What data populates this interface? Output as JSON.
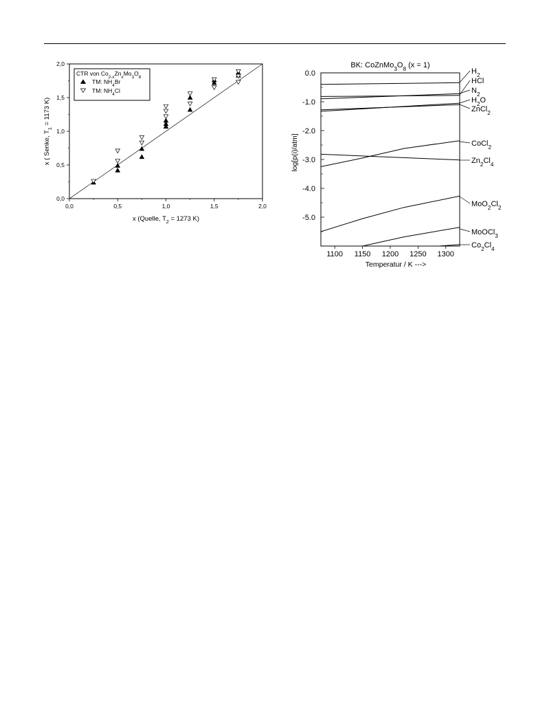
{
  "page": {
    "header_rule": true
  },
  "chart_data": [
    {
      "type": "scatter",
      "xlabel_main": "x (Quelle, T",
      "xlabel_sub": "2",
      "xlabel_tail": " = 1273 K)",
      "ylabel_main": "x ( Senke, T",
      "ylabel_sub": "1",
      "ylabel_tail": " = 1173 K)",
      "xlim": [
        0.0,
        2.0
      ],
      "ylim": [
        0.0,
        2.0
      ],
      "xticks": [
        "0,0",
        "0,5",
        "1,0",
        "1,5",
        "2,0"
      ],
      "yticks": [
        "0,0",
        "0,5",
        "1,0",
        "1,5",
        "2,0"
      ],
      "xtick_values": [
        0.0,
        0.5,
        1.0,
        1.5,
        2.0
      ],
      "ytick_values": [
        0.0,
        0.5,
        1.0,
        1.5,
        2.0
      ],
      "legend_title_parts": [
        "CTR von Co",
        "2-x",
        "Zn",
        "x",
        "Mo",
        "3",
        "O",
        "8"
      ],
      "legend_placement": "top-left",
      "reference_line": {
        "from": [
          0.0,
          0.0
        ],
        "to": [
          2.0,
          2.0
        ]
      },
      "series": [
        {
          "name_parts": [
            "TM: NH",
            "4",
            "Br"
          ],
          "marker": "filled-triangle-up",
          "points": [
            [
              0.25,
              0.24
            ],
            [
              0.5,
              0.42
            ],
            [
              0.5,
              0.49
            ],
            [
              0.75,
              0.62
            ],
            [
              0.75,
              0.74
            ],
            [
              1.0,
              1.07
            ],
            [
              1.0,
              1.11
            ],
            [
              1.0,
              1.16
            ],
            [
              1.25,
              1.32
            ],
            [
              1.25,
              1.5
            ],
            [
              1.5,
              1.72
            ],
            [
              1.5,
              1.76
            ],
            [
              1.75,
              1.83
            ],
            [
              1.75,
              1.87
            ]
          ]
        },
        {
          "name_parts": [
            "TM: NH",
            "4",
            "Cl"
          ],
          "marker": "open-triangle-down",
          "points": [
            [
              0.25,
              0.26
            ],
            [
              0.5,
              0.56
            ],
            [
              0.5,
              0.71
            ],
            [
              0.75,
              0.83
            ],
            [
              0.75,
              0.91
            ],
            [
              1.0,
              1.22
            ],
            [
              1.0,
              1.3
            ],
            [
              1.0,
              1.37
            ],
            [
              1.25,
              1.41
            ],
            [
              1.25,
              1.56
            ],
            [
              1.5,
              1.65
            ],
            [
              1.5,
              1.77
            ],
            [
              1.75,
              1.73
            ],
            [
              1.75,
              1.82
            ],
            [
              1.75,
              1.89
            ]
          ]
        }
      ]
    },
    {
      "type": "line",
      "title_parts": [
        "BK: CoZnMo",
        "3",
        "O",
        "8",
        " (x = 1)"
      ],
      "xlabel": "Temperatur / K --->",
      "ylabel": "log[p(i)/atm]",
      "xlim": [
        1075,
        1325
      ],
      "ylim": [
        -6.0,
        0.0
      ],
      "xticks": [
        "1100",
        "1150",
        "1200",
        "1250",
        "1300"
      ],
      "xtick_values": [
        1100,
        1150,
        1200,
        1250,
        1300
      ],
      "yticks": [
        "0.0",
        "-1.0",
        "-2.0",
        "-3.0",
        "-4.0",
        "-5.0"
      ],
      "ytick_values": [
        0.0,
        -1.0,
        -2.0,
        -3.0,
        -4.0,
        -5.0
      ],
      "series": [
        {
          "label_parts": [
            "H",
            "2"
          ],
          "x": [
            1075,
            1325
          ],
          "y": [
            -0.4,
            -0.34
          ]
        },
        {
          "label_parts": [
            "HCl"
          ],
          "x": [
            1075,
            1325
          ],
          "y": [
            -0.82,
            -0.78
          ]
        },
        {
          "label_parts": [
            "N",
            "2"
          ],
          "x": [
            1075,
            1325
          ],
          "y": [
            -0.9,
            -0.72
          ]
        },
        {
          "label_parts": [
            "H",
            "2",
            "O"
          ],
          "x": [
            1075,
            1325
          ],
          "y": [
            -1.28,
            -1.1
          ]
        },
        {
          "label_parts": [
            "ZnCl",
            "2"
          ],
          "x": [
            1075,
            1325
          ],
          "y": [
            -1.33,
            -1.05
          ]
        },
        {
          "label_parts": [
            "CoCl",
            "2"
          ],
          "x": [
            1075,
            1150,
            1225,
            1325
          ],
          "y": [
            -3.25,
            -2.95,
            -2.62,
            -2.35
          ]
        },
        {
          "label_parts": [
            "Zn",
            "2",
            "Cl",
            "4"
          ],
          "x": [
            1075,
            1325
          ],
          "y": [
            -2.82,
            -3.02
          ]
        },
        {
          "label_parts": [
            "MoO",
            "2",
            "Cl",
            "2"
          ],
          "x": [
            1075,
            1150,
            1225,
            1325
          ],
          "y": [
            -5.5,
            -5.05,
            -4.66,
            -4.27
          ]
        },
        {
          "label_parts": [
            "MoOCl",
            "3"
          ],
          "x": [
            1150,
            1225,
            1325
          ],
          "y": [
            -6.0,
            -5.68,
            -5.35
          ]
        },
        {
          "label_parts": [
            "Co",
            "2",
            "Cl",
            "4"
          ],
          "x": [
            1250,
            1325
          ],
          "y": [
            -6.05,
            -5.95
          ]
        }
      ],
      "grid": false
    }
  ]
}
